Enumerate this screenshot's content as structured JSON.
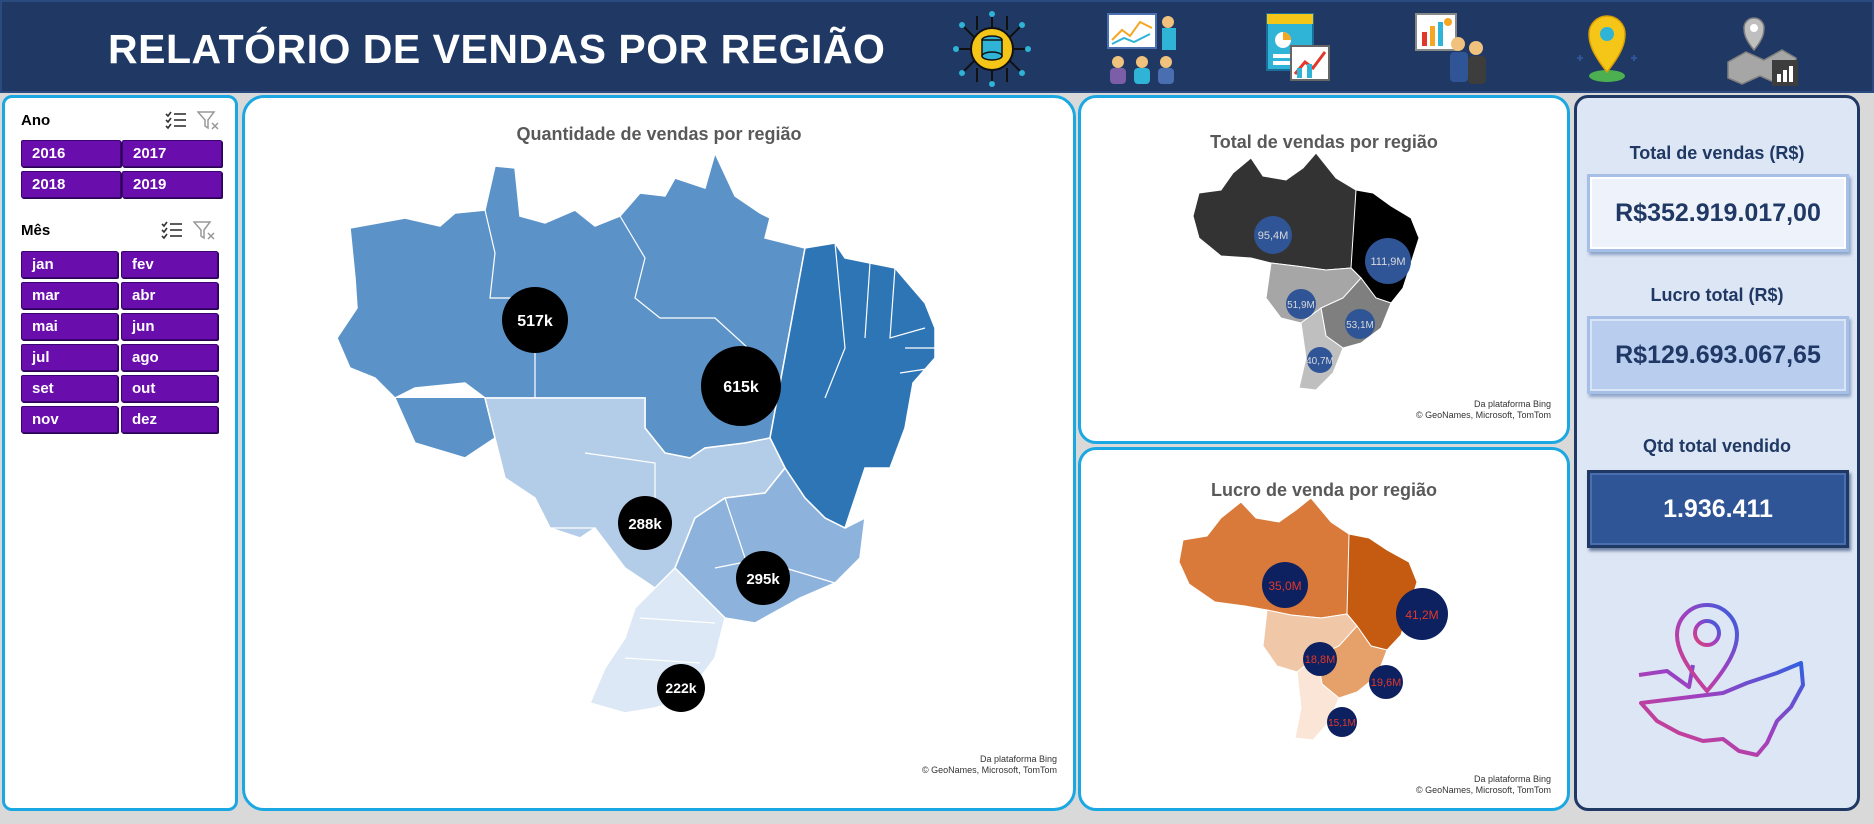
{
  "header": {
    "title": "RELATÓRIO DE VENDAS POR REGIÃO",
    "icons": [
      "database-chip-icon",
      "presentation-icon",
      "report-chart-icon",
      "business-meeting-icon",
      "location-pin-icon",
      "map-chart-icon"
    ]
  },
  "filters": {
    "year": {
      "title": "Ano",
      "options": [
        "2016",
        "2017",
        "2018",
        "2019"
      ]
    },
    "month": {
      "title": "Mês",
      "options": [
        "jan",
        "fev",
        "mar",
        "abr",
        "mai",
        "jun",
        "jul",
        "ago",
        "set",
        "out",
        "nov",
        "dez"
      ]
    },
    "chip_color": "#6a0dad"
  },
  "map_main": {
    "title": "Quantidade de vendas por região",
    "bubbles": [
      "517k",
      "615k",
      "288k",
      "295k",
      "222k"
    ],
    "credit_line1": "Da plataforma Bing",
    "credit_line2": "© GeoNames, Microsoft, TomTom"
  },
  "map_total": {
    "title": "Total de vendas por região",
    "bubbles": [
      "95,4M",
      "111,9M",
      "51,9M",
      "53,1M",
      "40,7M"
    ],
    "credit_line1": "Da plataforma Bing",
    "credit_line2": "© GeoNames, Microsoft, TomTom"
  },
  "map_lucro": {
    "title": "Lucro de venda por região",
    "bubbles": [
      "35,0M",
      "41,2M",
      "18,8M",
      "19,6M",
      "15,1M"
    ],
    "credit_line1": "Da plataforma Bing",
    "credit_line2": "© GeoNames, Microsoft, TomTom"
  },
  "kpis": {
    "total_label": "Total de vendas (R$)",
    "total_value": "R$352.919.017,00",
    "profit_label": "Lucro total (R$)",
    "profit_value": "R$129.693.067,65",
    "qty_label": "Qtd total vendido",
    "qty_value": "1.936.411"
  },
  "colors": {
    "header_bg": "#1f3864",
    "panel_border": "#1ba8e2",
    "north": "#5b93c9",
    "northeast": "#2e75b6",
    "central_west": "#b3cde9",
    "southeast": "#8db3dc",
    "south": "#dce8f5",
    "bubble_main": "#000000",
    "bubble_small": "#2f5597"
  }
}
